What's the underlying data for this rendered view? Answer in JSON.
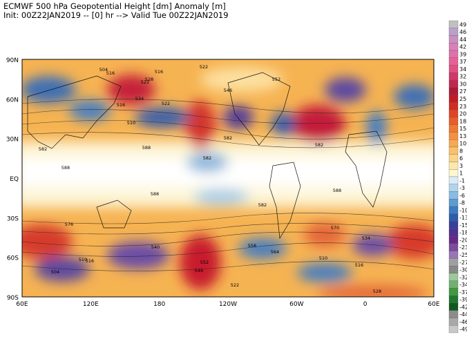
{
  "header": {
    "line1": "ECMWF 500 hPa Geopotential Height [dm] Anomaly [m]",
    "line2": "Init: 00Z22JAN2019 -- [0] hr --> Valid Tue 00Z22JAN2019"
  },
  "lat_labels": [
    "90N",
    "60N",
    "30N",
    "EQ",
    "30S",
    "60S",
    "90S"
  ],
  "lon_labels": [
    "60E",
    "120E",
    "180",
    "120W",
    "60W",
    "0",
    "60E"
  ],
  "colorbar_labels": [
    "49",
    "46",
    "44",
    "42",
    "39",
    "37",
    "34",
    "32",
    "30",
    "27",
    "25",
    "23",
    "20",
    "18",
    "15",
    "13",
    "10",
    "8",
    "6",
    "3",
    "1",
    "-1",
    "-3",
    "-6",
    "-8",
    "-10",
    "-13",
    "-15",
    "-18",
    "-20",
    "-23",
    "-25",
    "-27",
    "-30",
    "-32",
    "-34",
    "-37",
    "-39",
    "-42",
    "-44",
    "-46",
    "-49"
  ],
  "contour_labels": [
    "516",
    "522",
    "516",
    "522",
    "504",
    "528",
    "516",
    "522",
    "534",
    "510",
    "546",
    "552",
    "582",
    "588",
    "582",
    "588",
    "588",
    "582",
    "582",
    "582",
    "588",
    "516",
    "510",
    "504",
    "510",
    "516",
    "522",
    "528",
    "534",
    "552",
    "546",
    "576",
    "570",
    "564",
    "558",
    "540"
  ]
}
